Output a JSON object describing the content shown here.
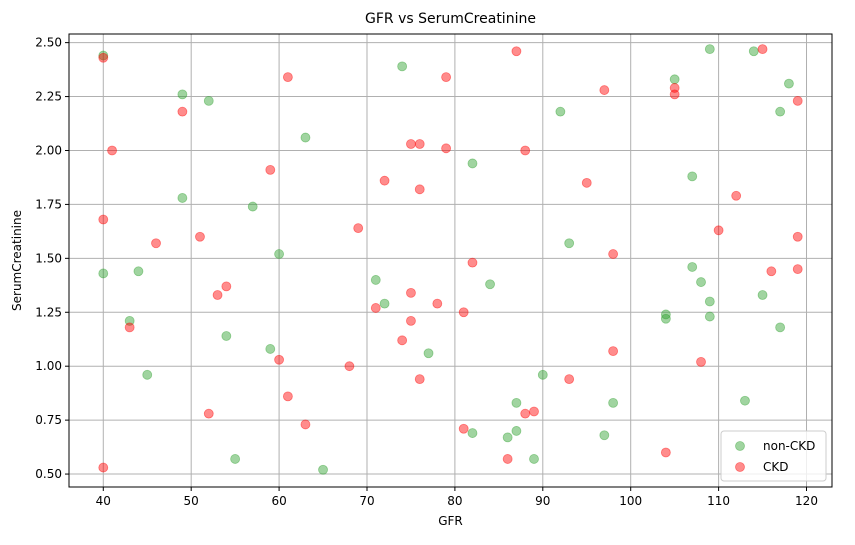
{
  "chart_data": {
    "type": "scatter",
    "title": "GFR vs SerumCreatinine",
    "xlabel": "GFR",
    "ylabel": "SerumCreatinine",
    "xlim": [
      36.1,
      122.9
    ],
    "ylim": [
      0.44,
      2.54
    ],
    "xticks": [
      40,
      50,
      60,
      70,
      80,
      90,
      100,
      110,
      120
    ],
    "xtick_labels": [
      "40",
      "50",
      "60",
      "70",
      "80",
      "90",
      "100",
      "110",
      "120"
    ],
    "yticks": [
      0.5,
      0.75,
      1.0,
      1.25,
      1.5,
      1.75,
      2.0,
      2.25,
      2.5
    ],
    "ytick_labels": [
      "0.50",
      "0.75",
      "1.00",
      "1.25",
      "1.50",
      "1.75",
      "2.00",
      "2.25",
      "2.50"
    ],
    "grid": true,
    "legend_position": "lower-right",
    "series": [
      {
        "name": "non-CKD",
        "color": "#2ca02c",
        "points": [
          [
            40,
            2.44
          ],
          [
            40,
            1.43
          ],
          [
            43,
            1.21
          ],
          [
            44,
            1.44
          ],
          [
            45,
            0.96
          ],
          [
            49,
            2.26
          ],
          [
            49,
            1.78
          ],
          [
            52,
            2.23
          ],
          [
            54,
            1.14
          ],
          [
            55,
            0.57
          ],
          [
            57,
            1.74
          ],
          [
            59,
            1.08
          ],
          [
            60,
            1.52
          ],
          [
            63,
            2.06
          ],
          [
            65,
            0.52
          ],
          [
            71,
            1.4
          ],
          [
            72,
            1.29
          ],
          [
            74,
            2.39
          ],
          [
            77,
            1.06
          ],
          [
            82,
            1.94
          ],
          [
            82,
            0.69
          ],
          [
            84,
            1.38
          ],
          [
            86,
            0.67
          ],
          [
            87,
            0.83
          ],
          [
            87,
            0.7
          ],
          [
            89,
            0.57
          ],
          [
            90,
            0.96
          ],
          [
            92,
            2.18
          ],
          [
            93,
            1.57
          ],
          [
            97,
            0.68
          ],
          [
            98,
            0.83
          ],
          [
            104,
            1.24
          ],
          [
            104,
            1.22
          ],
          [
            105,
            2.33
          ],
          [
            107,
            1.88
          ],
          [
            107,
            1.46
          ],
          [
            108,
            1.39
          ],
          [
            109,
            2.47
          ],
          [
            109,
            1.3
          ],
          [
            109,
            1.23
          ],
          [
            113,
            0.84
          ],
          [
            114,
            2.46
          ],
          [
            115,
            1.33
          ],
          [
            117,
            2.18
          ],
          [
            117,
            1.18
          ],
          [
            118,
            2.31
          ]
        ]
      },
      {
        "name": "CKD",
        "color": "#ff0000",
        "points": [
          [
            40,
            2.43
          ],
          [
            40,
            1.68
          ],
          [
            40,
            0.53
          ],
          [
            41,
            2.0
          ],
          [
            43,
            1.18
          ],
          [
            46,
            1.57
          ],
          [
            49,
            2.18
          ],
          [
            51,
            1.6
          ],
          [
            52,
            0.78
          ],
          [
            53,
            1.33
          ],
          [
            54,
            1.37
          ],
          [
            59,
            1.91
          ],
          [
            60,
            1.03
          ],
          [
            61,
            2.34
          ],
          [
            61,
            0.86
          ],
          [
            63,
            0.73
          ],
          [
            68,
            1.0
          ],
          [
            69,
            1.64
          ],
          [
            71,
            1.27
          ],
          [
            72,
            1.86
          ],
          [
            74,
            1.12
          ],
          [
            75,
            2.03
          ],
          [
            75,
            1.34
          ],
          [
            75,
            1.21
          ],
          [
            76,
            2.03
          ],
          [
            76,
            1.82
          ],
          [
            76,
            0.94
          ],
          [
            78,
            1.29
          ],
          [
            79,
            2.34
          ],
          [
            79,
            2.01
          ],
          [
            81,
            1.25
          ],
          [
            81,
            0.71
          ],
          [
            82,
            1.48
          ],
          [
            86,
            0.57
          ],
          [
            87,
            2.46
          ],
          [
            88,
            2.0
          ],
          [
            88,
            0.78
          ],
          [
            89,
            0.79
          ],
          [
            93,
            0.94
          ],
          [
            95,
            1.85
          ],
          [
            97,
            2.28
          ],
          [
            98,
            1.52
          ],
          [
            98,
            1.07
          ],
          [
            104,
            0.6
          ],
          [
            105,
            2.29
          ],
          [
            105,
            2.26
          ],
          [
            108,
            1.02
          ],
          [
            110,
            1.63
          ],
          [
            112,
            1.79
          ],
          [
            115,
            2.47
          ],
          [
            116,
            1.44
          ],
          [
            119,
            2.23
          ],
          [
            119,
            1.6
          ],
          [
            119,
            1.45
          ]
        ]
      }
    ]
  }
}
